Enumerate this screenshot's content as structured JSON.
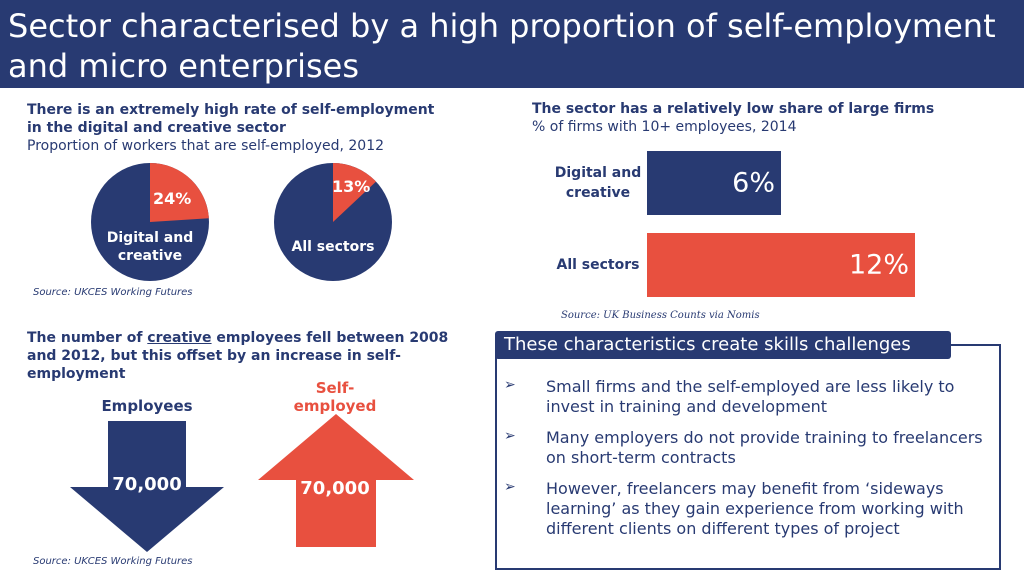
{
  "header": {
    "title": "Sector characterised by a high proportion of self-employment and micro enterprises"
  },
  "colors": {
    "navy": "#283a72",
    "red": "#e8503f"
  },
  "self_employment": {
    "heading": "There is an extremely high rate of self-employment in the digital and creative sector",
    "subheading": "Proportion of workers that are self-employed, 2012",
    "source": "Source: UKCES Working Futures"
  },
  "large_firms": {
    "heading": "The sector has a relatively low share of large firms",
    "subheading": "% of firms with 10+ employees, 2014",
    "source": "Source: UK Business Counts via Nomis"
  },
  "employment_change": {
    "heading_pre": "The number of ",
    "heading_underlined": "creative",
    "heading_post": " employees fell between 2008 and 2012, but this offset by an increase in self-employment",
    "employees_label": "Employees",
    "employees_value": "70,000",
    "self_employed_label": "Self-\nemployed",
    "self_employed_value": "70,000",
    "source": "Source: UKCES Working Futures"
  },
  "skills": {
    "title": "These characteristics create skills challenges",
    "bullet_glyph": "➢",
    "items": [
      "Small firms and the self-employed are less likely to invest in training and development",
      "Many employers do not provide training to freelancers on short-term contracts",
      "However, freelancers may benefit from ‘sideways learning’ as they gain experience from working with different clients on different types of project"
    ]
  },
  "chart_data": [
    {
      "type": "pie",
      "title": "",
      "categories": [
        "Digital and creative",
        "All sectors"
      ],
      "series": [
        {
          "label": "Digital and creative",
          "self_employed_pct": 24,
          "value_label": "24%"
        },
        {
          "label": "All sectors",
          "self_employed_pct": 13,
          "value_label": "13%"
        }
      ]
    },
    {
      "type": "bar",
      "orientation": "horizontal",
      "categories": [
        "Digital and\ncreative",
        "All sectors"
      ],
      "values": [
        6,
        12
      ],
      "value_labels": [
        "6%",
        "12%"
      ],
      "bar_colors": [
        "#283a72",
        "#e8503f"
      ],
      "xlim": [
        0,
        12
      ]
    }
  ]
}
